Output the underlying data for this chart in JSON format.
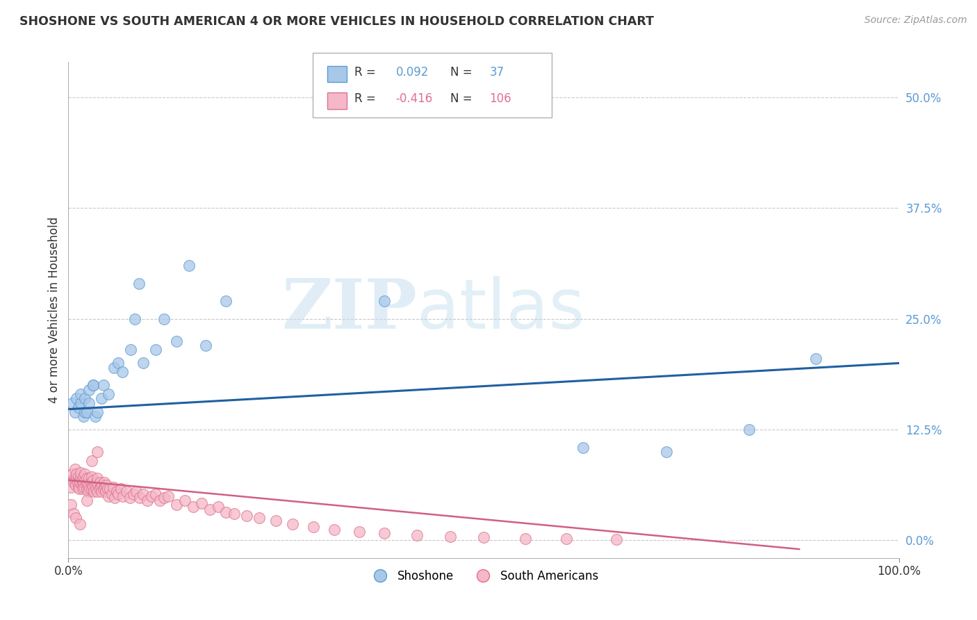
{
  "title": "SHOSHONE VS SOUTH AMERICAN 4 OR MORE VEHICLES IN HOUSEHOLD CORRELATION CHART",
  "source_text": "Source: ZipAtlas.com",
  "ylabel": "4 or more Vehicles in Household",
  "xlim": [
    0.0,
    1.0
  ],
  "ylim": [
    -0.02,
    0.54
  ],
  "yticks": [
    0.0,
    0.125,
    0.25,
    0.375,
    0.5
  ],
  "ytick_labels": [
    "0.0%",
    "12.5%",
    "25.0%",
    "37.5%",
    "50.0%"
  ],
  "xtick_positions": [
    0.0,
    1.0
  ],
  "xtick_labels": [
    "0.0%",
    "100.0%"
  ],
  "shoshone_color": "#a8c8e8",
  "shoshone_edge_color": "#5b9bd5",
  "sa_color": "#f4b8c8",
  "sa_edge_color": "#e07090",
  "blue_line_color": "#2060a0",
  "pink_line_color": "#d06080",
  "watermark_zip": "ZIP",
  "watermark_atlas": "atlas",
  "background_color": "#ffffff",
  "grid_color": "#c8c8c8",
  "shoshone_x": [
    0.005,
    0.008,
    0.01,
    0.012,
    0.015,
    0.015,
    0.018,
    0.02,
    0.02,
    0.022,
    0.025,
    0.025,
    0.03,
    0.03,
    0.032,
    0.035,
    0.04,
    0.042,
    0.048,
    0.055,
    0.06,
    0.065,
    0.075,
    0.08,
    0.085,
    0.09,
    0.105,
    0.115,
    0.13,
    0.145,
    0.165,
    0.19,
    0.38,
    0.62,
    0.72,
    0.82,
    0.9
  ],
  "shoshone_y": [
    0.155,
    0.145,
    0.16,
    0.15,
    0.155,
    0.165,
    0.14,
    0.145,
    0.16,
    0.145,
    0.155,
    0.17,
    0.175,
    0.175,
    0.14,
    0.145,
    0.16,
    0.175,
    0.165,
    0.195,
    0.2,
    0.19,
    0.215,
    0.25,
    0.29,
    0.2,
    0.215,
    0.25,
    0.225,
    0.31,
    0.22,
    0.27,
    0.27,
    0.105,
    0.1,
    0.125,
    0.205
  ],
  "sa_x": [
    0.003,
    0.005,
    0.006,
    0.007,
    0.008,
    0.008,
    0.009,
    0.01,
    0.01,
    0.011,
    0.012,
    0.012,
    0.013,
    0.013,
    0.014,
    0.015,
    0.015,
    0.016,
    0.016,
    0.017,
    0.018,
    0.018,
    0.019,
    0.02,
    0.02,
    0.021,
    0.022,
    0.022,
    0.023,
    0.024,
    0.025,
    0.025,
    0.026,
    0.027,
    0.028,
    0.028,
    0.029,
    0.03,
    0.03,
    0.031,
    0.032,
    0.033,
    0.034,
    0.035,
    0.035,
    0.036,
    0.037,
    0.038,
    0.039,
    0.04,
    0.041,
    0.042,
    0.043,
    0.044,
    0.045,
    0.046,
    0.047,
    0.048,
    0.05,
    0.052,
    0.054,
    0.056,
    0.058,
    0.06,
    0.063,
    0.066,
    0.07,
    0.074,
    0.078,
    0.082,
    0.086,
    0.09,
    0.095,
    0.1,
    0.105,
    0.11,
    0.115,
    0.12,
    0.13,
    0.14,
    0.15,
    0.16,
    0.17,
    0.18,
    0.19,
    0.2,
    0.215,
    0.23,
    0.25,
    0.27,
    0.295,
    0.32,
    0.35,
    0.38,
    0.42,
    0.46,
    0.5,
    0.55,
    0.6,
    0.66,
    0.003,
    0.006,
    0.009,
    0.014,
    0.022,
    0.028,
    0.035
  ],
  "sa_y": [
    0.06,
    0.075,
    0.065,
    0.07,
    0.068,
    0.08,
    0.062,
    0.07,
    0.075,
    0.065,
    0.06,
    0.072,
    0.058,
    0.068,
    0.065,
    0.07,
    0.076,
    0.062,
    0.068,
    0.058,
    0.065,
    0.072,
    0.06,
    0.068,
    0.075,
    0.062,
    0.058,
    0.07,
    0.064,
    0.055,
    0.062,
    0.07,
    0.058,
    0.065,
    0.072,
    0.058,
    0.062,
    0.068,
    0.06,
    0.055,
    0.062,
    0.058,
    0.065,
    0.07,
    0.055,
    0.062,
    0.058,
    0.065,
    0.06,
    0.055,
    0.062,
    0.058,
    0.065,
    0.06,
    0.055,
    0.062,
    0.058,
    0.05,
    0.058,
    0.052,
    0.06,
    0.048,
    0.055,
    0.052,
    0.058,
    0.05,
    0.055,
    0.048,
    0.052,
    0.055,
    0.048,
    0.052,
    0.045,
    0.05,
    0.052,
    0.045,
    0.048,
    0.05,
    0.04,
    0.045,
    0.038,
    0.042,
    0.035,
    0.038,
    0.032,
    0.03,
    0.028,
    0.025,
    0.022,
    0.018,
    0.015,
    0.012,
    0.01,
    0.008,
    0.006,
    0.004,
    0.003,
    0.002,
    0.002,
    0.001,
    0.04,
    0.03,
    0.025,
    0.018,
    0.045,
    0.09,
    0.1
  ],
  "blue_line_x0": 0.0,
  "blue_line_y0": 0.148,
  "blue_line_x1": 1.0,
  "blue_line_y1": 0.2,
  "pink_line_x0": 0.0,
  "pink_line_y0": 0.068,
  "pink_line_x1": 0.88,
  "pink_line_y1": -0.01
}
